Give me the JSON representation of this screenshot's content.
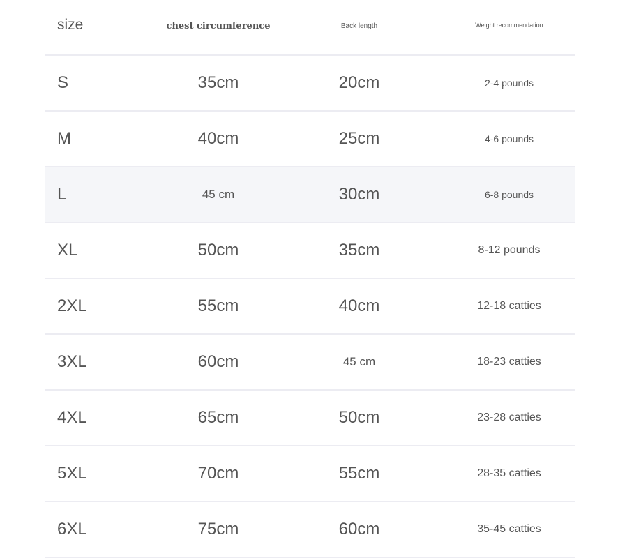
{
  "header": {
    "size": "size",
    "chest": "chest circumference",
    "back": "Back length",
    "weight": "Weight recommendation"
  },
  "rows": [
    {
      "size": "S",
      "chest": "35cm",
      "back": "20cm",
      "weight": "2-4 pounds"
    },
    {
      "size": "M",
      "chest": "40cm",
      "back": "25cm",
      "weight": "4-6 pounds"
    },
    {
      "size": "L",
      "chest": "45 cm",
      "back": "30cm",
      "weight": "6-8 pounds"
    },
    {
      "size": "XL",
      "chest": "50cm",
      "back": "35cm",
      "weight": "8-12 pounds"
    },
    {
      "size": "2XL",
      "chest": "55cm",
      "back": "40cm",
      "weight": "12-18 catties"
    },
    {
      "size": "3XL",
      "chest": "60cm",
      "back": "45 cm",
      "weight": "18-23 catties"
    },
    {
      "size": "4XL",
      "chest": "65cm",
      "back": "50cm",
      "weight": "23-28 catties"
    },
    {
      "size": "5XL",
      "chest": "70cm",
      "back": "55cm",
      "weight": "28-35 catties"
    },
    {
      "size": "6XL",
      "chest": "75cm",
      "back": "60cm",
      "weight": "35-45 catties"
    }
  ],
  "highlight_row": "L",
  "colors": {
    "text": "#555555",
    "highlight_bg": "#f5f6f9",
    "divider": "#ececf2"
  }
}
